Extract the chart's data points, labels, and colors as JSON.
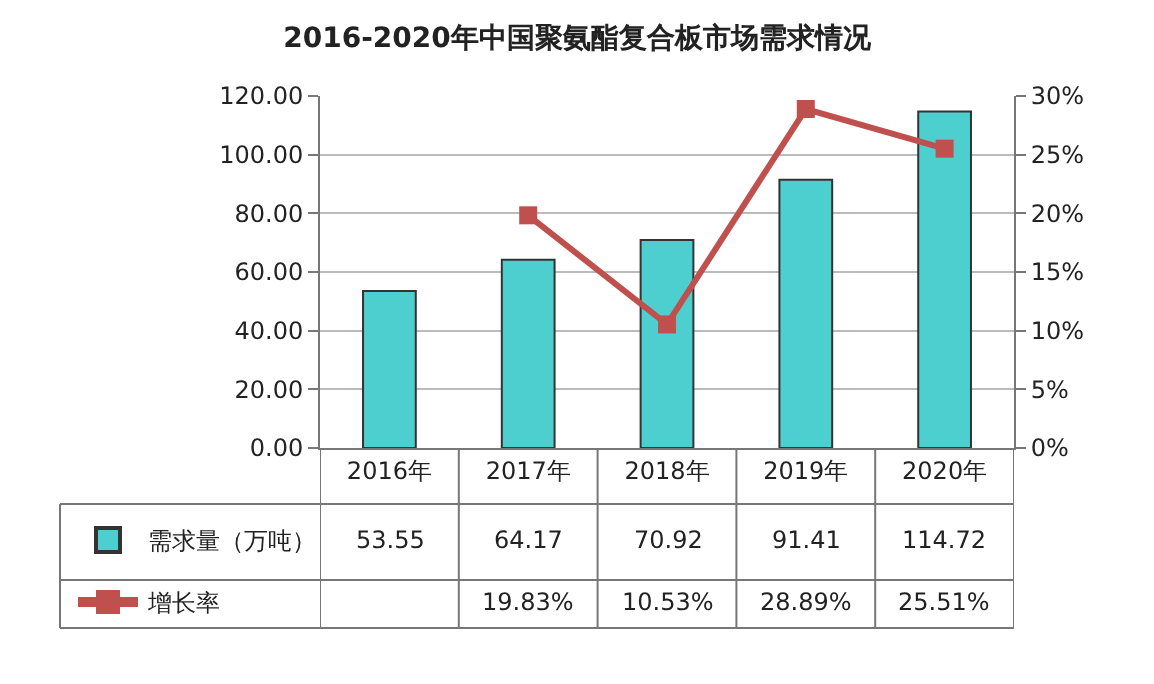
{
  "chart_data": {
    "type": "bar",
    "title": "2016-2020年中国聚氨酯复合板市场需求情况",
    "categories": [
      "2016年",
      "2017年",
      "2018年",
      "2019年",
      "2020年"
    ],
    "series": [
      {
        "name": "需求量（万吨）",
        "type": "bar",
        "color": "#4ecfcf",
        "values": [
          53.55,
          64.17,
          70.92,
          91.41,
          114.72
        ],
        "value_labels": [
          "53.55",
          "64.17",
          "70.92",
          "91.41",
          "114.72"
        ]
      },
      {
        "name": "增长率",
        "type": "line",
        "axis": "y2",
        "color": "#c0504d",
        "values": [
          null,
          19.83,
          10.53,
          28.89,
          25.51
        ],
        "value_labels": [
          null,
          "19.83%",
          "10.53%",
          "28.89%",
          "25.51%"
        ]
      }
    ],
    "ylim": [
      0,
      120
    ],
    "yticks": [
      {
        "value": 0,
        "label": "0.00"
      },
      {
        "value": 20,
        "label": "20.00"
      },
      {
        "value": 40,
        "label": "40.00"
      },
      {
        "value": 60,
        "label": "60.00"
      },
      {
        "value": 80,
        "label": "80.00"
      },
      {
        "value": 100,
        "label": "100.00"
      },
      {
        "value": 120,
        "label": "120.00"
      }
    ],
    "y2lim": [
      0,
      30
    ],
    "y2ticks": [
      {
        "value": 0,
        "label": "0%"
      },
      {
        "value": 5,
        "label": "5%"
      },
      {
        "value": 10,
        "label": "10%"
      },
      {
        "value": 15,
        "label": "15%"
      },
      {
        "value": 20,
        "label": "20%"
      },
      {
        "value": 25,
        "label": "25%"
      },
      {
        "value": 30,
        "label": "30%"
      }
    ],
    "grid": "y",
    "legend": "bottom left",
    "marker": "square",
    "line_style": "solid"
  }
}
